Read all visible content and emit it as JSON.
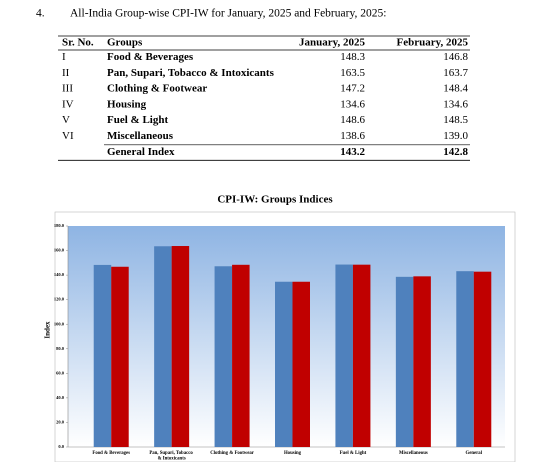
{
  "header": {
    "number": "4.",
    "title": "All-India Group-wise CPI-IW for January, 2025 and February, 2025:"
  },
  "table": {
    "columns": [
      "Sr. No.",
      "Groups",
      "January, 2025",
      "February, 2025"
    ],
    "rows": [
      [
        "I",
        "Food & Beverages",
        "148.3",
        "146.8"
      ],
      [
        "II",
        "Pan, Supari, Tobacco & Intoxicants",
        "163.5",
        "163.7"
      ],
      [
        "III",
        "Clothing & Footwear",
        "147.2",
        "148.4"
      ],
      [
        "IV",
        "Housing",
        "134.6",
        "134.6"
      ],
      [
        "V",
        "Fuel & Light",
        "148.6",
        "148.5"
      ],
      [
        "VI",
        "Miscellaneous",
        "138.6",
        "139.0"
      ]
    ],
    "total": {
      "label": "General Index",
      "values": [
        "143.2",
        "142.8"
      ]
    }
  },
  "chart_data": {
    "type": "bar",
    "title": "CPI-IW: Groups Indices",
    "y_label": "Index",
    "categories": [
      "Food & Beverages",
      "Pan, Supari, Tobacco & Intoxicants",
      "Clothing & Footwear",
      "Housing",
      "Fuel & Light",
      "Miscellaneous",
      "General"
    ],
    "series": [
      {
        "color": "#4f81bd",
        "values": [
          148.3,
          163.5,
          147.2,
          134.6,
          148.6,
          138.6,
          143.2
        ]
      },
      {
        "color": "#c00000",
        "values": [
          146.8,
          163.7,
          148.4,
          134.6,
          148.5,
          139.0,
          142.8
        ]
      }
    ],
    "ylim": [
      0,
      180
    ],
    "yticks": [
      {
        "value": 0,
        "label": "0.0"
      },
      {
        "value": 20,
        "label": "20.0"
      },
      {
        "value": 40,
        "label": "40.0"
      },
      {
        "value": 60,
        "label": "60.0"
      },
      {
        "value": 80,
        "label": "80.0"
      },
      {
        "value": 100,
        "label": "100.0"
      },
      {
        "value": 120,
        "label": "120.0"
      },
      {
        "value": 140,
        "label": "140.0"
      },
      {
        "value": 160,
        "label": "160.0"
      },
      {
        "value": 180,
        "label": "180.0"
      }
    ],
    "grid": false
  }
}
